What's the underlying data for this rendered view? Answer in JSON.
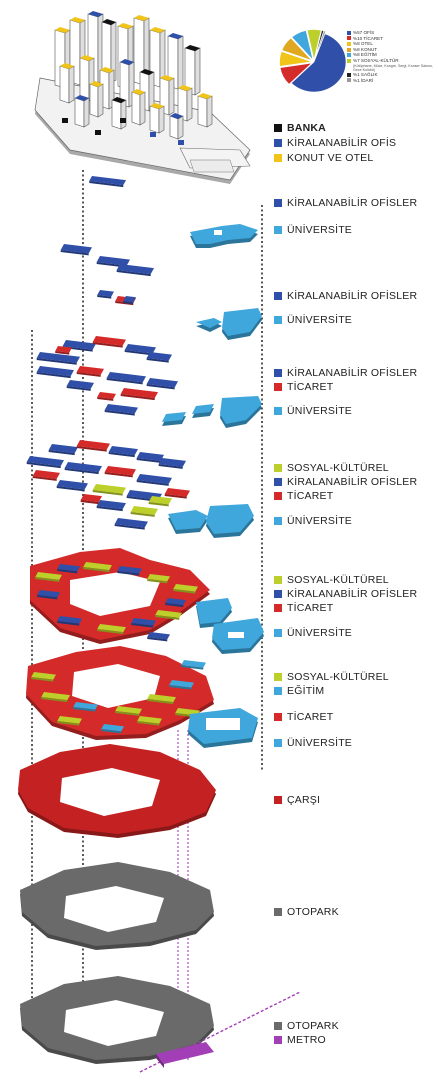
{
  "colors": {
    "ofis": "#2f4fa8",
    "ticaret": "#d42a2a",
    "otel": "#f0c419",
    "konut": "#e0a820",
    "egitim": "#3fa7dc",
    "sosyal": "#bccf2a",
    "saglik": "#222222",
    "idari": "#9a9a9a",
    "banka": "#111111",
    "universite": "#3fa7dc",
    "otopark": "#6a6a6a",
    "metro": "#a23fb6"
  },
  "pie": {
    "slices": [
      {
        "label": "%57 OFİS",
        "value": 57,
        "color": "#2f4fa8"
      },
      {
        "label": "%10 TİCARET",
        "value": 10,
        "color": "#d42a2a"
      },
      {
        "label": "%8 OTEL",
        "value": 8,
        "color": "#f0c419"
      },
      {
        "label": "%8 KONUT",
        "value": 8,
        "color": "#e0a820"
      },
      {
        "label": "%8 EĞİTİM",
        "value": 8,
        "color": "#3fa7dc"
      },
      {
        "label": "%7 SOSYAL-KÜLTÜR",
        "value": 7,
        "color": "#bccf2a"
      },
      {
        "label": "%1 SAĞLIK",
        "value": 1,
        "color": "#222222"
      },
      {
        "label": "%1 İDARİ",
        "value": 1,
        "color": "#9a9a9a"
      }
    ],
    "sosyal_sub": "(Kütüphane, Müze, Kongre, Sergi, Konser Salonu, Gece Kulübü)"
  },
  "legend_top": [
    {
      "label": "BANKA",
      "color": "#111111",
      "bold": true
    },
    {
      "label": "KİRALANABİLİR OFİS",
      "color": "#2f4fa8",
      "bold": false
    },
    {
      "label": "KONUT VE OTEL",
      "color": "#f0c419",
      "bold": false
    }
  ],
  "levels": [
    {
      "items": [
        {
          "label": "KİRALANABİLİR OFİSLER",
          "color": "#2f4fa8"
        },
        {
          "label": "ÜNİVERSİTE",
          "color": "#3fa7dc"
        }
      ]
    },
    {
      "items": [
        {
          "label": "KİRALANABİLİR OFİSLER",
          "color": "#2f4fa8"
        },
        {
          "label": "ÜNİVERSİTE",
          "color": "#3fa7dc"
        }
      ]
    },
    {
      "items": [
        {
          "label": "KİRALANABİLİR OFİSLER",
          "color": "#2f4fa8"
        },
        {
          "label": "TİCARET",
          "color": "#d42a2a"
        },
        {
          "label": "ÜNİVERSİTE",
          "color": "#3fa7dc"
        }
      ]
    },
    {
      "items": [
        {
          "label": "SOSYAL-KÜLTÜREL",
          "color": "#bccf2a"
        },
        {
          "label": "KİRALANABİLİR OFİSLER",
          "color": "#2f4fa8"
        },
        {
          "label": "TİCARET",
          "color": "#d42a2a"
        },
        {
          "label": "ÜNİVERSİTE",
          "color": "#3fa7dc"
        }
      ]
    },
    {
      "items": [
        {
          "label": "SOSYAL-KÜLTÜREL",
          "color": "#bccf2a"
        },
        {
          "label": "KİRALANABİLİR OFİSLER",
          "color": "#2f4fa8"
        },
        {
          "label": "TİCARET",
          "color": "#d42a2a"
        },
        {
          "label": "ÜNİVERSİTE",
          "color": "#3fa7dc"
        }
      ]
    },
    {
      "items": [
        {
          "label": "SOSYAL-KÜLTÜREL",
          "color": "#bccf2a"
        },
        {
          "label": "EĞİTİM",
          "color": "#3fa7dc"
        },
        {
          "label": "TİCARET",
          "color": "#d42a2a"
        },
        {
          "label": "ÜNİVERSİTE",
          "color": "#3fa7dc"
        }
      ]
    },
    {
      "items": [
        {
          "label": "ÇARŞI",
          "color": "#c42222"
        }
      ]
    },
    {
      "items": [
        {
          "label": "OTOPARK",
          "color": "#6a6a6a"
        }
      ]
    },
    {
      "items": [
        {
          "label": "OTOPARK",
          "color": "#6a6a6a"
        },
        {
          "label": "METRO",
          "color": "#a23fb6"
        }
      ]
    }
  ]
}
